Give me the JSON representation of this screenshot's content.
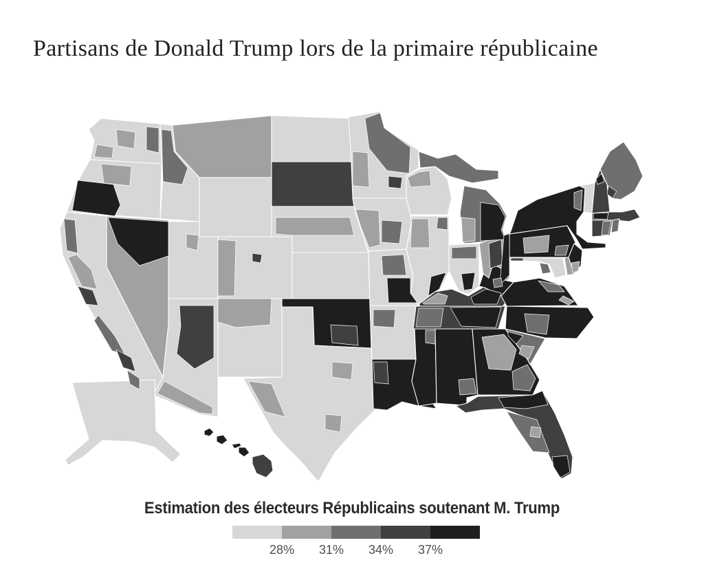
{
  "title": "Partisans de Donald Trump lors de la primaire républicaine",
  "legend": {
    "title": "Estimation des électeurs Républicains soutenant M. Trump",
    "tick_labels": [
      "28%",
      "31%",
      "34%",
      "37%"
    ],
    "colors": [
      "#d7d7d7",
      "#a1a1a1",
      "#6f6f6f",
      "#404040",
      "#1e1e1e"
    ]
  },
  "map": {
    "description": "Carte choroplèthe des circonscriptions des États-Unis (Alaska et Hawaï en encarts)",
    "stroke_color": "#ffffff",
    "regions": [
      {
        "id": "WA",
        "shade": 0
      },
      {
        "id": "OR",
        "shade": 0
      },
      {
        "id": "CA",
        "shade": 0
      },
      {
        "id": "NV",
        "shade": 1
      },
      {
        "id": "ID",
        "shade": 0
      },
      {
        "id": "MT",
        "shade": 1
      },
      {
        "id": "WY",
        "shade": 0
      },
      {
        "id": "UT",
        "shade": 0
      },
      {
        "id": "CO",
        "shade": 0
      },
      {
        "id": "AZ",
        "shade": 0
      },
      {
        "id": "NM",
        "shade": 0
      },
      {
        "id": "ND",
        "shade": 0
      },
      {
        "id": "SD",
        "shade": 3
      },
      {
        "id": "NE",
        "shade": 0
      },
      {
        "id": "KS",
        "shade": 0
      },
      {
        "id": "OK",
        "shade": 4
      },
      {
        "id": "TX",
        "shade": 0
      },
      {
        "id": "MN",
        "shade": 0
      },
      {
        "id": "IA",
        "shade": 0
      },
      {
        "id": "MO",
        "shade": 0
      },
      {
        "id": "AR",
        "shade": 0
      },
      {
        "id": "LA",
        "shade": 4
      },
      {
        "id": "WI",
        "shade": 0
      },
      {
        "id": "IL",
        "shade": 0
      },
      {
        "id": "MIU",
        "shade": 2
      },
      {
        "id": "MIL",
        "shade": 2
      },
      {
        "id": "IN",
        "shade": 0
      },
      {
        "id": "OH",
        "shade": 1
      },
      {
        "id": "KY",
        "shade": 3
      },
      {
        "id": "TN",
        "shade": 3
      },
      {
        "id": "MS",
        "shade": 4
      },
      {
        "id": "AL",
        "shade": 4
      },
      {
        "id": "GA",
        "shade": 4
      },
      {
        "id": "SC",
        "shade": 2
      },
      {
        "id": "NC",
        "shade": 4
      },
      {
        "id": "FL",
        "shade": 3
      },
      {
        "id": "VA",
        "shade": 4
      },
      {
        "id": "WV",
        "shade": 4
      },
      {
        "id": "MD",
        "shade": 0
      },
      {
        "id": "DE",
        "shade": 1
      },
      {
        "id": "PA",
        "shade": 4
      },
      {
        "id": "NJ",
        "shade": 4
      },
      {
        "id": "NY",
        "shade": 4
      },
      {
        "id": "VT",
        "shade": 0
      },
      {
        "id": "NH",
        "shade": 3
      },
      {
        "id": "ME",
        "shade": 2
      },
      {
        "id": "MA",
        "shade": 3
      },
      {
        "id": "CT",
        "shade": 3
      },
      {
        "id": "RI",
        "shade": 2
      },
      {
        "id": "AK",
        "shade": 0
      },
      {
        "id": "HI1",
        "shade": 4
      },
      {
        "id": "HI2",
        "shade": 4
      },
      {
        "id": "HI3",
        "shade": 4
      },
      {
        "id": "HI4",
        "shade": 4
      },
      {
        "id": "HI5",
        "shade": 3
      },
      {
        "id": "WA-p1",
        "shade": 1
      },
      {
        "id": "WA-p2",
        "shade": 2
      },
      {
        "id": "WA-p3",
        "shade": 1
      },
      {
        "id": "OR-p1",
        "shade": 1
      },
      {
        "id": "OR-p2",
        "shade": 4
      },
      {
        "id": "CA-p1",
        "shade": 2
      },
      {
        "id": "CA-p2",
        "shade": 1
      },
      {
        "id": "CA-p3",
        "shade": 3
      },
      {
        "id": "CA-p4",
        "shade": 2
      },
      {
        "id": "CA-p5",
        "shade": 3
      },
      {
        "id": "CA-p6",
        "shade": 2
      },
      {
        "id": "NV-p1",
        "shade": 4
      },
      {
        "id": "ID-p1",
        "shade": 2
      },
      {
        "id": "UT-p1",
        "shade": 1
      },
      {
        "id": "CO-p1",
        "shade": 1
      },
      {
        "id": "CO-p2",
        "shade": 3
      },
      {
        "id": "AZ-p1",
        "shade": 3
      },
      {
        "id": "AZ-p2",
        "shade": 1
      },
      {
        "id": "NM-p1",
        "shade": 1
      },
      {
        "id": "NE-p1",
        "shade": 1
      },
      {
        "id": "OK-p1",
        "shade": 3
      },
      {
        "id": "TX-p1",
        "shade": 1
      },
      {
        "id": "TX-p2",
        "shade": 1
      },
      {
        "id": "TX-p3",
        "shade": 1
      },
      {
        "id": "MN-p1",
        "shade": 2
      },
      {
        "id": "MN-p2",
        "shade": 1
      },
      {
        "id": "MN-p3",
        "shade": 3
      },
      {
        "id": "WI-p1",
        "shade": 1
      },
      {
        "id": "IA-p1",
        "shade": 1
      },
      {
        "id": "IA-p2",
        "shade": 2
      },
      {
        "id": "MO-p1",
        "shade": 2
      },
      {
        "id": "MO-p2",
        "shade": 4
      },
      {
        "id": "AR-p1",
        "shade": 2
      },
      {
        "id": "LA-p1",
        "shade": 3
      },
      {
        "id": "IL-p1",
        "shade": 1
      },
      {
        "id": "IL-p2",
        "shade": 2
      },
      {
        "id": "IL-p3",
        "shade": 4
      },
      {
        "id": "IN-p1",
        "shade": 2
      },
      {
        "id": "IN-p2",
        "shade": 4
      },
      {
        "id": "MIL-p1",
        "shade": 4
      },
      {
        "id": "MIL-p2",
        "shade": 1
      },
      {
        "id": "OH-p1",
        "shade": 3
      },
      {
        "id": "OH-p2",
        "shade": 4
      },
      {
        "id": "KY-p1",
        "shade": 1
      },
      {
        "id": "KY-p2",
        "shade": 4
      },
      {
        "id": "TN-p1",
        "shade": 4
      },
      {
        "id": "TN-p2",
        "shade": 2
      },
      {
        "id": "MS-p1",
        "shade": 2
      },
      {
        "id": "AL-p1",
        "shade": 2
      },
      {
        "id": "GA-p1",
        "shade": 1
      },
      {
        "id": "GA-p2",
        "shade": 2
      },
      {
        "id": "SC-p1",
        "shade": 4
      },
      {
        "id": "SC-p2",
        "shade": 1
      },
      {
        "id": "NC-p1",
        "shade": 2
      },
      {
        "id": "FL-p1",
        "shade": 2
      },
      {
        "id": "FL-p2",
        "shade": 4
      },
      {
        "id": "FL-p3",
        "shade": 1
      },
      {
        "id": "FL-p4",
        "shade": 4
      },
      {
        "id": "VA-p1",
        "shade": 2
      },
      {
        "id": "VA-p2",
        "shade": 1
      },
      {
        "id": "WV-p1",
        "shade": 2
      },
      {
        "id": "PA-p1",
        "shade": 1
      },
      {
        "id": "PA-p2",
        "shade": 2
      },
      {
        "id": "NY-p1",
        "shade": 2
      },
      {
        "id": "NJ-p1",
        "shade": 1
      },
      {
        "id": "MD-p1",
        "shade": 3
      },
      {
        "id": "MD-p2",
        "shade": 2
      },
      {
        "id": "NH-p1",
        "shade": 4
      },
      {
        "id": "MA-p1",
        "shade": 4
      },
      {
        "id": "ME-p1",
        "shade": 3
      },
      {
        "id": "CT-p1",
        "shade": 2
      }
    ]
  }
}
